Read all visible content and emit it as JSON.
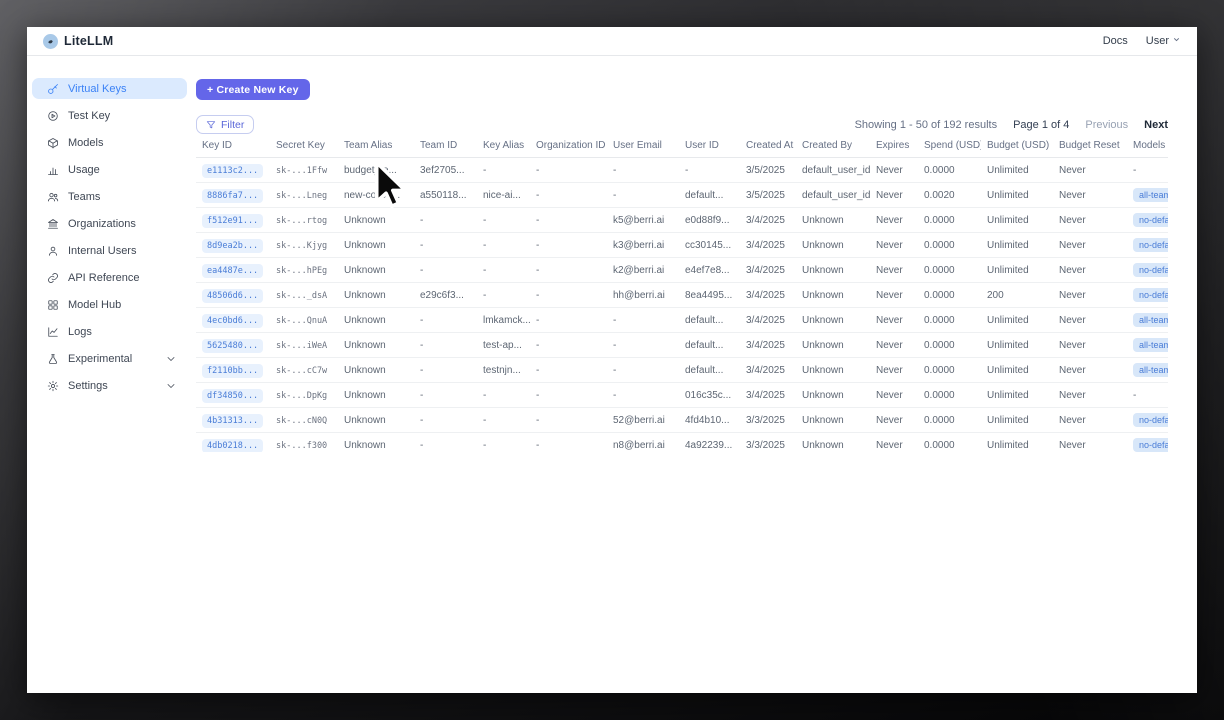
{
  "topnav": {
    "brand": "LiteLLM",
    "docs_label": "Docs",
    "user_label": "User"
  },
  "sidebar": {
    "items": [
      {
        "label": "Virtual Keys",
        "icon": "key",
        "active": true,
        "expandable": false
      },
      {
        "label": "Test Key",
        "icon": "play-circle",
        "active": false,
        "expandable": false
      },
      {
        "label": "Models",
        "icon": "box",
        "active": false,
        "expandable": false
      },
      {
        "label": "Usage",
        "icon": "bar-chart",
        "active": false,
        "expandable": false
      },
      {
        "label": "Teams",
        "icon": "users",
        "active": false,
        "expandable": false
      },
      {
        "label": "Organizations",
        "icon": "bank",
        "active": false,
        "expandable": false
      },
      {
        "label": "Internal Users",
        "icon": "user",
        "active": false,
        "expandable": false
      },
      {
        "label": "API Reference",
        "icon": "link",
        "active": false,
        "expandable": false
      },
      {
        "label": "Model Hub",
        "icon": "grid",
        "active": false,
        "expandable": false
      },
      {
        "label": "Logs",
        "icon": "line-chart",
        "active": false,
        "expandable": false
      },
      {
        "label": "Experimental",
        "icon": "flask",
        "active": false,
        "expandable": true
      },
      {
        "label": "Settings",
        "icon": "gear",
        "active": false,
        "expandable": true
      }
    ]
  },
  "toolbar": {
    "create_key_label": "+ Create New Key",
    "filter_label": "Filter"
  },
  "pagination": {
    "showing": "Showing 1 - 50 of 192 results",
    "page": "Page 1 of 4",
    "previous_label": "Previous",
    "next_label": "Next"
  },
  "table": {
    "columns": [
      "Key ID",
      "Secret Key",
      "Team Alias",
      "Team ID",
      "Key Alias",
      "Organization ID",
      "User Email",
      "User ID",
      "Created At",
      "Created By",
      "Expires",
      "Spend (USD)",
      "Budget (USD)",
      "Budget Reset",
      "Models"
    ],
    "rows": [
      [
        "e1113c2...",
        "sk-...1Ffw",
        "budget_te...",
        "3ef2705...",
        "-",
        "-",
        "-",
        "-",
        "3/5/2025",
        "default_user_id",
        "Never",
        "0.0000",
        "Unlimited",
        "Never",
        "-"
      ],
      [
        "8886fa7...",
        "sk-...Lneg",
        "new-collou...",
        "a550118...",
        "nice-ai...",
        "-",
        "-",
        "default...",
        "3/5/2025",
        "default_user_id",
        "Never",
        "0.0020",
        "Unlimited",
        "Never",
        "all-team-models"
      ],
      [
        "f512e91...",
        "sk-...rtog",
        "Unknown",
        "-",
        "-",
        "-",
        "k5@berri.ai",
        "e0d88f9...",
        "3/4/2025",
        "Unknown",
        "Never",
        "0.0000",
        "Unlimited",
        "Never",
        "no-default-models"
      ],
      [
        "8d9ea2b...",
        "sk-...Kjyg",
        "Unknown",
        "-",
        "-",
        "-",
        "k3@berri.ai",
        "cc30145...",
        "3/4/2025",
        "Unknown",
        "Never",
        "0.0000",
        "Unlimited",
        "Never",
        "no-default-models"
      ],
      [
        "ea4487e...",
        "sk-...hPEg",
        "Unknown",
        "-",
        "-",
        "-",
        "k2@berri.ai",
        "e4ef7e8...",
        "3/4/2025",
        "Unknown",
        "Never",
        "0.0000",
        "Unlimited",
        "Never",
        "no-default-models"
      ],
      [
        "48506d6...",
        "sk-..._dsA",
        "Unknown",
        "e29c6f3...",
        "-",
        "-",
        "hh@berri.ai",
        "8ea4495...",
        "3/4/2025",
        "Unknown",
        "Never",
        "0.0000",
        "200",
        "Never",
        "no-default-models"
      ],
      [
        "4ec0bd6...",
        "sk-...QnuA",
        "Unknown",
        "-",
        "lmkamck...",
        "-",
        "-",
        "default...",
        "3/4/2025",
        "Unknown",
        "Never",
        "0.0000",
        "Unlimited",
        "Never",
        "all-team-models"
      ],
      [
        "5625480...",
        "sk-...iWeA",
        "Unknown",
        "-",
        "test-ap...",
        "-",
        "-",
        "default...",
        "3/4/2025",
        "Unknown",
        "Never",
        "0.0000",
        "Unlimited",
        "Never",
        "all-team-models"
      ],
      [
        "f2110bb...",
        "sk-...cC7w",
        "Unknown",
        "-",
        "testnjn...",
        "-",
        "-",
        "default...",
        "3/4/2025",
        "Unknown",
        "Never",
        "0.0000",
        "Unlimited",
        "Never",
        "all-team-models"
      ],
      [
        "df34850...",
        "sk-...DpKg",
        "Unknown",
        "-",
        "-",
        "-",
        "-",
        "016c35c...",
        "3/4/2025",
        "Unknown",
        "Never",
        "0.0000",
        "Unlimited",
        "Never",
        "-"
      ],
      [
        "4b31313...",
        "sk-...cN0Q",
        "Unknown",
        "-",
        "-",
        "-",
        "52@berri.ai",
        "4fd4b10...",
        "3/3/2025",
        "Unknown",
        "Never",
        "0.0000",
        "Unlimited",
        "Never",
        "no-default-models"
      ],
      [
        "4db0218...",
        "sk-...f300",
        "Unknown",
        "-",
        "-",
        "-",
        "n8@berri.ai",
        "4a92239...",
        "3/3/2025",
        "Unknown",
        "Never",
        "0.0000",
        "Unlimited",
        "Never",
        "no-default-models"
      ]
    ]
  },
  "colors": {
    "accent": "#6466e9",
    "sidebar_active_bg": "#dbeafe",
    "sidebar_active_text": "#3b82f6",
    "chip_bg": "#e8f1fd",
    "chip_text": "#4a7dd7",
    "badge_bg": "#d8e7f9"
  }
}
